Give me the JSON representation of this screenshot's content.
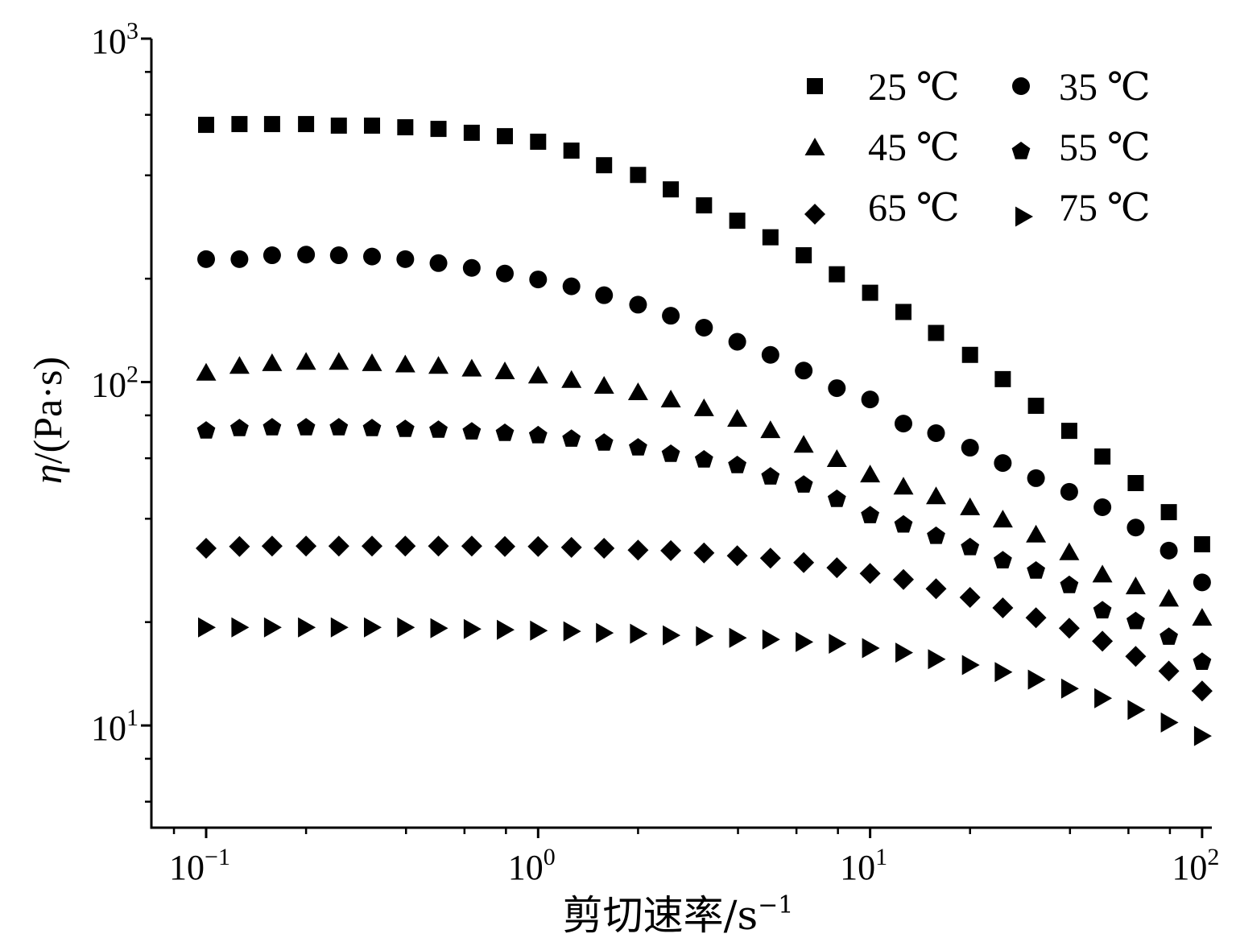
{
  "chart_data": {
    "type": "scatter",
    "xscale": "log",
    "yscale": "log",
    "xlim": [
      0.0684,
      107
    ],
    "ylim": [
      5.04,
      1000
    ],
    "grid": false,
    "legend": {
      "placement": "top-right"
    },
    "xlabel": {
      "text": "剪切速率/s",
      "exponent": "−1"
    },
    "ylabel": {
      "symbol": "η",
      "unit": "/(Pa·s)"
    },
    "xticks": [
      0.1,
      1,
      10,
      100
    ],
    "x_tick_labels": [
      {
        "base": "10",
        "exp": "−1"
      },
      {
        "base": "10",
        "exp": "0"
      },
      {
        "base": "10",
        "exp": "1"
      },
      {
        "base": "10",
        "exp": "2"
      }
    ],
    "yticks": [
      10,
      100,
      1000
    ],
    "y_tick_labels": [
      {
        "base": "10",
        "exp": "1"
      },
      {
        "base": "10",
        "exp": "2"
      },
      {
        "base": "10",
        "exp": "3"
      }
    ],
    "x": [
      0.1,
      0.126,
      0.158,
      0.2,
      0.251,
      0.316,
      0.398,
      0.501,
      0.631,
      0.794,
      1,
      1.26,
      1.58,
      2,
      2.51,
      3.16,
      3.98,
      5.01,
      6.31,
      7.94,
      10,
      12.6,
      15.8,
      20,
      25.1,
      31.6,
      39.8,
      50.1,
      63.1,
      79.4,
      100
    ],
    "series": [
      {
        "name": "25 ℃",
        "marker": "square",
        "color": "#000000",
        "values": [
          561,
          564,
          564,
          564,
          558,
          558,
          552,
          546,
          532,
          520,
          501,
          472,
          428,
          401,
          364,
          327,
          295,
          264,
          234,
          206,
          182,
          160,
          139,
          120,
          102,
          85.3,
          72.1,
          60.7,
          50.8,
          41.8,
          33.7
        ]
      },
      {
        "name": "35 ℃",
        "marker": "circle",
        "color": "#000000",
        "values": [
          228,
          228,
          234,
          235,
          234,
          232,
          228,
          222,
          215,
          207,
          199,
          190,
          179,
          168,
          156,
          144,
          131,
          120,
          108,
          96.0,
          89.0,
          75.7,
          71.0,
          64.4,
          58.1,
          52.5,
          47.9,
          43.2,
          37.7,
          32.3,
          26.1
        ]
      },
      {
        "name": "45 ℃",
        "marker": "triangle",
        "color": "#000000",
        "values": [
          106,
          111,
          113,
          114,
          114,
          113,
          112,
          111,
          109,
          107,
          104,
          101,
          97.1,
          93.0,
          88.6,
          83.5,
          77.8,
          72.1,
          65.4,
          59.4,
          53.6,
          49.4,
          46.3,
          43.0,
          39.6,
          35.8,
          31.8,
          27.4,
          25.3,
          23.3,
          20.5
        ]
      },
      {
        "name": "55 ℃",
        "marker": "pentagon",
        "color": "#000000",
        "values": [
          72.1,
          73.3,
          73.7,
          73.7,
          73.7,
          73.3,
          72.9,
          72.5,
          71.7,
          71.0,
          69.9,
          68.3,
          66.5,
          64.4,
          61.7,
          59.4,
          57.2,
          53.0,
          50.2,
          45.6,
          40.9,
          38.4,
          35.6,
          33.0,
          30.2,
          28.2,
          25.6,
          21.6,
          20.1,
          18.1,
          15.3
        ]
      },
      {
        "name": "65 ℃",
        "marker": "diamond",
        "color": "#000000",
        "values": [
          32.8,
          33.2,
          33.3,
          33.3,
          33.3,
          33.3,
          33.3,
          33.3,
          33.3,
          33.2,
          33.2,
          33.0,
          32.8,
          32.4,
          32.3,
          31.8,
          31.2,
          30.7,
          29.8,
          28.8,
          27.7,
          26.6,
          25.0,
          23.6,
          22.0,
          20.6,
          19.2,
          17.6,
          15.9,
          14.4,
          12.6
        ]
      },
      {
        "name": "75 ℃",
        "marker": "triangle-right",
        "color": "#000000",
        "values": [
          19.3,
          19.3,
          19.3,
          19.3,
          19.3,
          19.3,
          19.3,
          19.2,
          19.1,
          19.0,
          18.9,
          18.8,
          18.6,
          18.5,
          18.3,
          18.2,
          18.0,
          17.8,
          17.5,
          17.3,
          16.8,
          16.3,
          15.6,
          15.0,
          14.3,
          13.6,
          12.8,
          12.0,
          11.1,
          10.2,
          9.32
        ]
      }
    ]
  }
}
